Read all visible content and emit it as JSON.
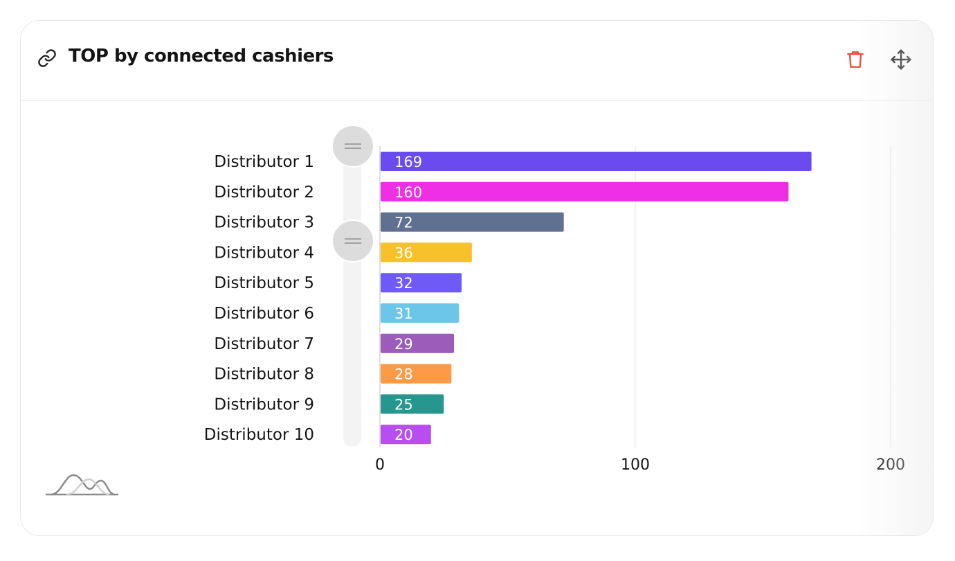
{
  "widget": {
    "title": "TOP by connected cashiers",
    "icons": {
      "link": "link-icon",
      "delete": "trash-icon",
      "move": "move-icon",
      "chart_type": "distribution-curve-icon"
    },
    "delete_color": "#e5533d"
  },
  "chart_data": {
    "type": "bar",
    "orientation": "horizontal",
    "title": "TOP by connected cashiers",
    "categories": [
      "Distributor 1",
      "Distributor 2",
      "Distributor 3",
      "Distributor 4",
      "Distributor 5",
      "Distributor 6",
      "Distributor 7",
      "Distributor 8",
      "Distributor 9",
      "Distributor 10"
    ],
    "values": [
      169,
      160,
      72,
      36,
      32,
      31,
      29,
      28,
      25,
      20
    ],
    "colors": [
      "#6a4bef",
      "#ef2fe3",
      "#5f7090",
      "#f6c12a",
      "#6f5af8",
      "#6cc6ea",
      "#9b5cba",
      "#fc9a45",
      "#26968f",
      "#b84ef0"
    ],
    "xlim": [
      0,
      200
    ],
    "x_ticks": [
      0,
      100,
      200
    ],
    "data_labels": true,
    "grid": "vertical",
    "legend": "none",
    "zoom_slider": {
      "orientation": "vertical",
      "handles": 2
    }
  }
}
